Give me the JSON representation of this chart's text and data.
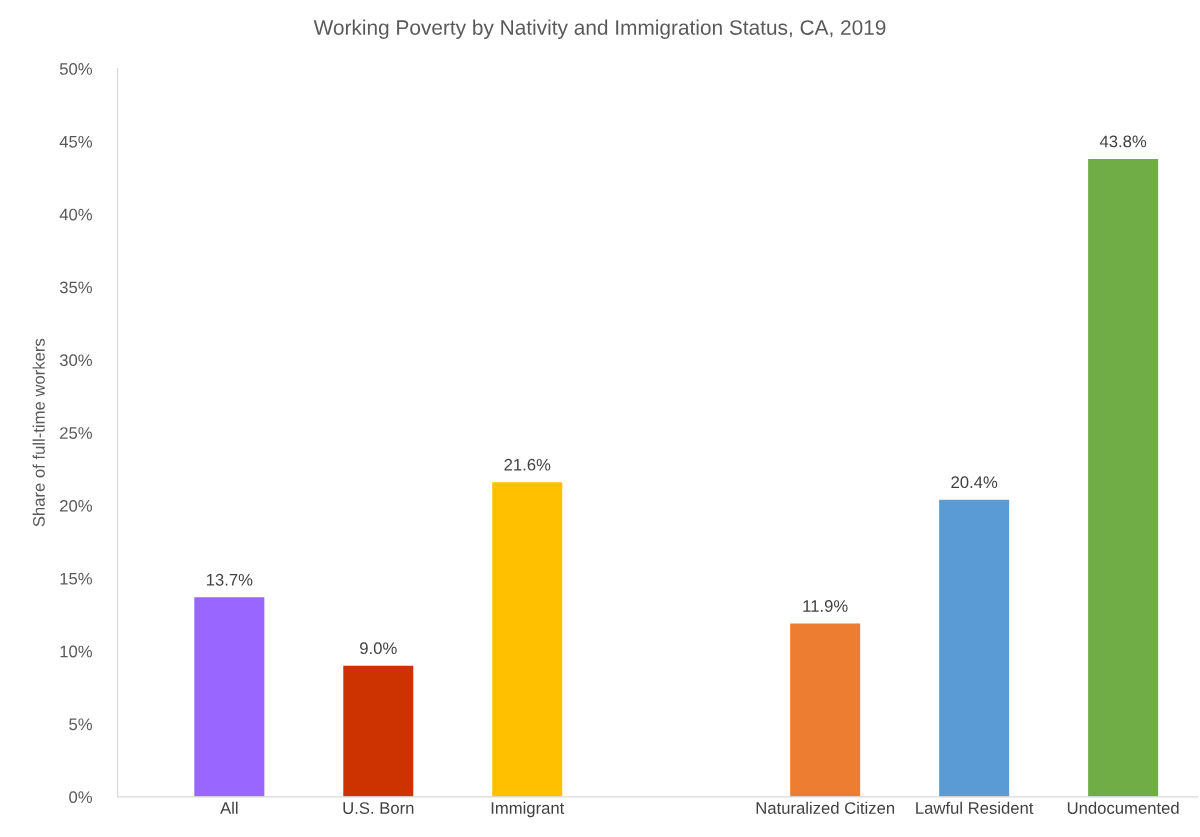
{
  "chart_data": {
    "type": "bar",
    "title": "Working Poverty by Nativity and Immigration Status, CA, 2019",
    "ylabel": "Share of full-time workers",
    "categories": [
      "All",
      "U.S. Born",
      "Immigrant",
      null,
      "Naturalized Citizen",
      "Lawful Resident",
      "Undocumented"
    ],
    "values": [
      13.7,
      9.0,
      21.6,
      null,
      11.9,
      20.4,
      43.8
    ],
    "colors": [
      "#9966ff",
      "#cc3300",
      "#ffc000",
      null,
      "#ed7d31",
      "#5b9bd5",
      "#70ad47"
    ],
    "value_labels": [
      "13.7%",
      "9.0%",
      "21.6%",
      null,
      "11.9%",
      "20.4%",
      "43.8%"
    ],
    "ylim": [
      0,
      50
    ],
    "yticks": [
      {
        "value": 0,
        "label": "0%"
      },
      {
        "value": 5,
        "label": "5%"
      },
      {
        "value": 10,
        "label": "10%"
      },
      {
        "value": 15,
        "label": "15%"
      },
      {
        "value": 20,
        "label": "20%"
      },
      {
        "value": 25,
        "label": "25%"
      },
      {
        "value": 30,
        "label": "30%"
      },
      {
        "value": 35,
        "label": "35%"
      },
      {
        "value": 40,
        "label": "40%"
      },
      {
        "value": 45,
        "label": "45%"
      },
      {
        "value": 50,
        "label": "50%"
      }
    ],
    "grid": false
  }
}
